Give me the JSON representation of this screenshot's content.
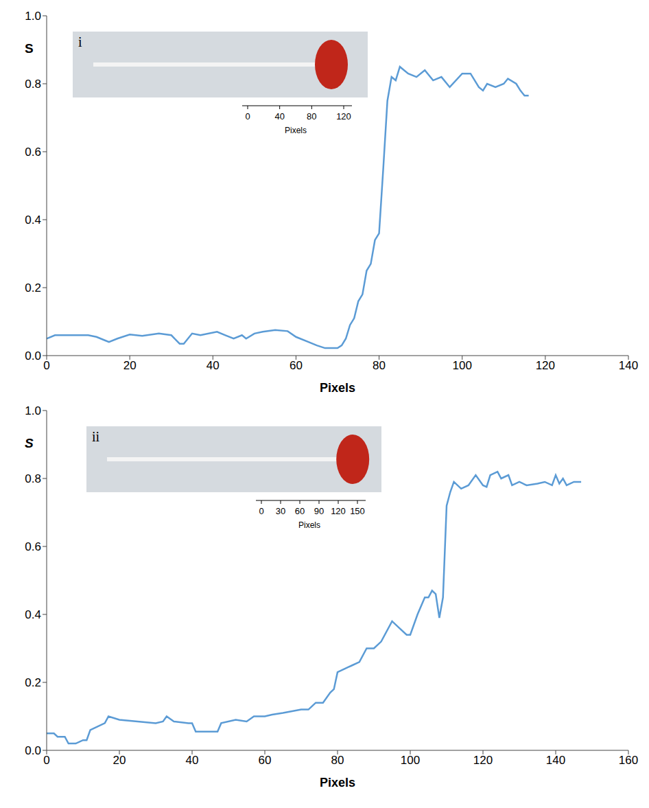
{
  "chart_data": [
    {
      "type": "line",
      "x_label": "Pixels",
      "y_label": "S",
      "color": "#5b9bd5",
      "xlim": [
        0,
        140
      ],
      "xticks": [
        0,
        20,
        40,
        60,
        80,
        100,
        120,
        140
      ],
      "ylim": [
        0,
        1
      ],
      "yticks": [
        {
          "value": 0,
          "label": "0.0"
        },
        0.2,
        0.4,
        0.6,
        0.8,
        {
          "value": 1,
          "label": "1.0"
        }
      ],
      "x": [
        0,
        2,
        5,
        10,
        12,
        14,
        15,
        17,
        20,
        23,
        27,
        30,
        32,
        33,
        35,
        37,
        41,
        43,
        45,
        47,
        48,
        50,
        52,
        55,
        58,
        60,
        63,
        65,
        67,
        70,
        71,
        72,
        73,
        74,
        75,
        76,
        77,
        78,
        79,
        80,
        81,
        82,
        83,
        84,
        85,
        86,
        87,
        89,
        91,
        93,
        95,
        97,
        100,
        102,
        104,
        105,
        106,
        108,
        110,
        111,
        113,
        114,
        115,
        116
      ],
      "values": [
        0.05,
        0.06,
        0.06,
        0.06,
        0.055,
        0.045,
        0.04,
        0.05,
        0.062,
        0.058,
        0.065,
        0.06,
        0.035,
        0.035,
        0.065,
        0.06,
        0.07,
        0.06,
        0.05,
        0.06,
        0.05,
        0.065,
        0.07,
        0.075,
        0.072,
        0.055,
        0.04,
        0.03,
        0.022,
        0.022,
        0.03,
        0.05,
        0.09,
        0.11,
        0.16,
        0.18,
        0.25,
        0.27,
        0.34,
        0.36,
        0.55,
        0.75,
        0.82,
        0.81,
        0.85,
        0.84,
        0.83,
        0.82,
        0.84,
        0.81,
        0.82,
        0.79,
        0.83,
        0.83,
        0.79,
        0.78,
        0.8,
        0.79,
        0.8,
        0.815,
        0.8,
        0.78,
        0.765,
        0.765
      ],
      "inset": {
        "label": "i",
        "scale_ticks": [
          0,
          40,
          80,
          120
        ],
        "scale_label": "Pixels"
      }
    },
    {
      "type": "line",
      "x_label": "Pixels",
      "y_label": "S",
      "color": "#5b9bd5",
      "xlim": [
        0,
        160
      ],
      "xticks": [
        0,
        20,
        40,
        60,
        80,
        100,
        120,
        140,
        160
      ],
      "ylim": [
        0,
        1
      ],
      "yticks": [
        {
          "value": 0,
          "label": "0.0"
        },
        0.2,
        0.4,
        0.6,
        0.8,
        {
          "value": 1,
          "label": "1.0"
        }
      ],
      "x": [
        0,
        2,
        3,
        5,
        6,
        8,
        10,
        11,
        12,
        14,
        16,
        17,
        20,
        25,
        30,
        32,
        33,
        35,
        39,
        40,
        41,
        45,
        47,
        48,
        52,
        55,
        57,
        60,
        62,
        65,
        70,
        72,
        74,
        76,
        78,
        79,
        80,
        82,
        84,
        86,
        88,
        90,
        92,
        95,
        97,
        99,
        100,
        102,
        104,
        105,
        106,
        107,
        108,
        109,
        110,
        111,
        112,
        114,
        116,
        118,
        120,
        121,
        122,
        124,
        125,
        127,
        128,
        130,
        132,
        135,
        137,
        139,
        140,
        141,
        142,
        143,
        145,
        147
      ],
      "values": [
        0.05,
        0.05,
        0.04,
        0.04,
        0.02,
        0.02,
        0.03,
        0.03,
        0.06,
        0.07,
        0.08,
        0.1,
        0.09,
        0.085,
        0.08,
        0.085,
        0.1,
        0.085,
        0.08,
        0.08,
        0.055,
        0.055,
        0.055,
        0.08,
        0.09,
        0.085,
        0.1,
        0.1,
        0.105,
        0.11,
        0.12,
        0.12,
        0.14,
        0.14,
        0.17,
        0.18,
        0.23,
        0.24,
        0.25,
        0.26,
        0.3,
        0.3,
        0.32,
        0.38,
        0.36,
        0.34,
        0.34,
        0.4,
        0.45,
        0.45,
        0.47,
        0.46,
        0.39,
        0.45,
        0.72,
        0.76,
        0.79,
        0.77,
        0.78,
        0.81,
        0.78,
        0.775,
        0.81,
        0.82,
        0.8,
        0.81,
        0.78,
        0.79,
        0.78,
        0.785,
        0.79,
        0.78,
        0.81,
        0.785,
        0.8,
        0.78,
        0.79,
        0.79
      ],
      "inset": {
        "label": "ii",
        "scale_ticks": [
          0,
          30,
          60,
          90,
          120,
          150
        ],
        "scale_label": "Pixels"
      }
    }
  ]
}
